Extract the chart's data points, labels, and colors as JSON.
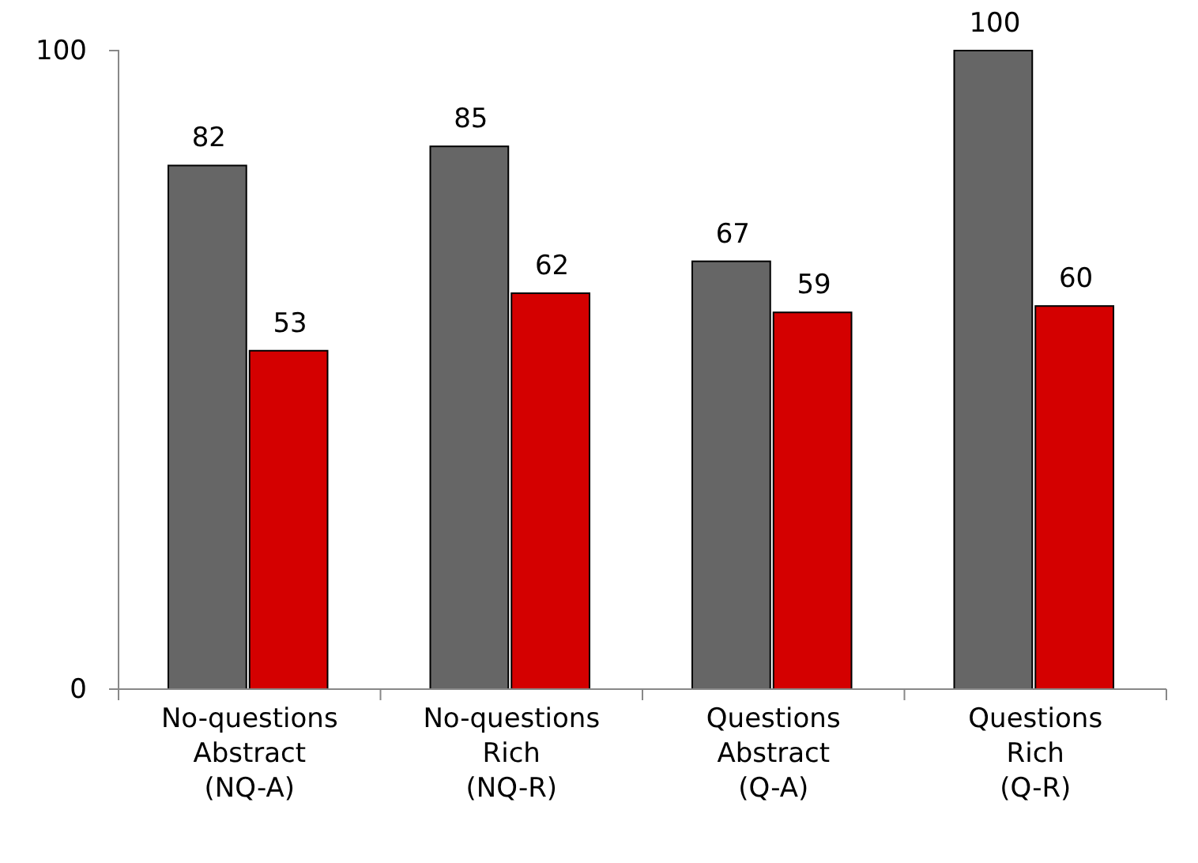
{
  "chart_data": {
    "type": "bar",
    "categories": [
      "No-questions\nAbstract\n(NQ-A)",
      "No-questions\nRich\n(NQ-R)",
      "Questions\nAbstract\n(Q-A)",
      "Questions\nRich\n(Q-R)"
    ],
    "series": [
      {
        "color": "#666666",
        "values": [
          82,
          85,
          67,
          100
        ]
      },
      {
        "color": "#d40000",
        "values": [
          53,
          62,
          59,
          60
        ]
      }
    ],
    "ylim": [
      0,
      100
    ],
    "yticks": [
      0,
      100
    ],
    "data_labels": true,
    "grid": false
  }
}
